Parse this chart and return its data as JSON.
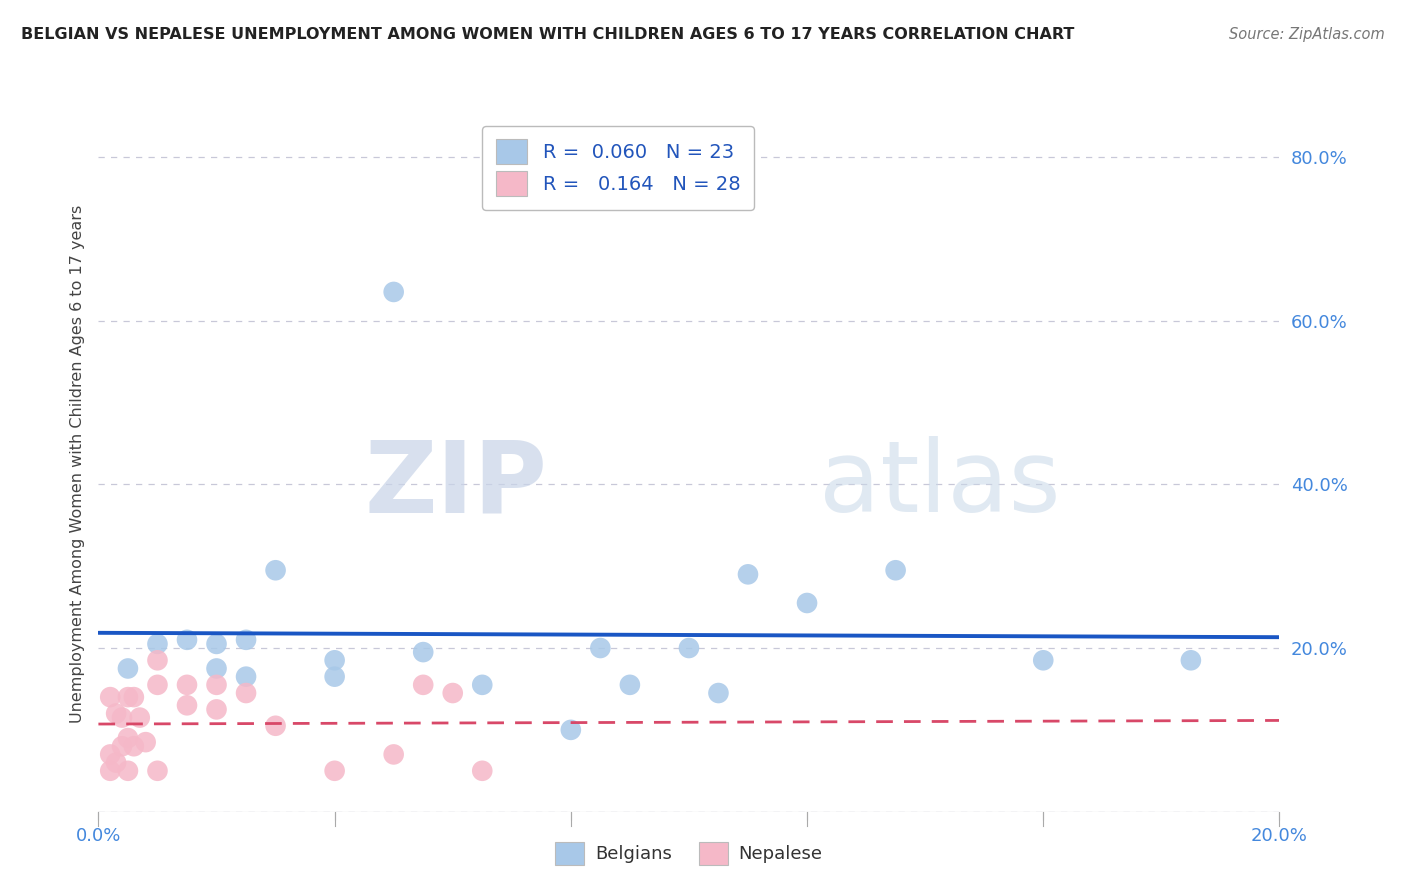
{
  "title": "BELGIAN VS NEPALESE UNEMPLOYMENT AMONG WOMEN WITH CHILDREN AGES 6 TO 17 YEARS CORRELATION CHART",
  "source": "Source: ZipAtlas.com",
  "ylabel": "Unemployment Among Women with Children Ages 6 to 17 years",
  "xlim": [
    0.0,
    0.2
  ],
  "ylim": [
    0.0,
    0.85
  ],
  "x_ticks": [
    0.0,
    0.04,
    0.08,
    0.12,
    0.16,
    0.2
  ],
  "x_tick_labels": [
    "0.0%",
    "",
    "",
    "",
    "",
    "20.0%"
  ],
  "y_ticks": [
    0.0,
    0.2,
    0.4,
    0.6,
    0.8
  ],
  "y_tick_labels": [
    "",
    "20.0%",
    "40.0%",
    "60.0%",
    "80.0%"
  ],
  "belgian_R": "0.060",
  "belgian_N": "23",
  "nepalese_R": "0.164",
  "nepalese_N": "28",
  "belgian_color": "#a8c8e8",
  "nepalese_color": "#f5b8c8",
  "belgian_line_color": "#1a56c4",
  "nepalese_line_color": "#d84868",
  "watermark_zip": "ZIP",
  "watermark_atlas": "atlas",
  "belgian_scatter_x": [
    0.005,
    0.01,
    0.015,
    0.02,
    0.02,
    0.025,
    0.025,
    0.03,
    0.04,
    0.04,
    0.05,
    0.055,
    0.065,
    0.08,
    0.085,
    0.09,
    0.1,
    0.105,
    0.11,
    0.12,
    0.135,
    0.16,
    0.185
  ],
  "belgian_scatter_y": [
    0.175,
    0.205,
    0.21,
    0.175,
    0.205,
    0.165,
    0.21,
    0.295,
    0.185,
    0.165,
    0.635,
    0.195,
    0.155,
    0.1,
    0.2,
    0.155,
    0.2,
    0.145,
    0.29,
    0.255,
    0.295,
    0.185,
    0.185
  ],
  "nepalese_scatter_x": [
    0.002,
    0.002,
    0.002,
    0.003,
    0.003,
    0.004,
    0.004,
    0.005,
    0.005,
    0.005,
    0.006,
    0.006,
    0.007,
    0.008,
    0.01,
    0.01,
    0.01,
    0.015,
    0.015,
    0.02,
    0.02,
    0.025,
    0.03,
    0.04,
    0.05,
    0.055,
    0.06,
    0.065
  ],
  "nepalese_scatter_y": [
    0.05,
    0.07,
    0.14,
    0.06,
    0.12,
    0.08,
    0.115,
    0.05,
    0.09,
    0.14,
    0.08,
    0.14,
    0.115,
    0.085,
    0.155,
    0.185,
    0.05,
    0.13,
    0.155,
    0.125,
    0.155,
    0.145,
    0.105,
    0.05,
    0.07,
    0.155,
    0.145,
    0.05
  ],
  "background_color": "#ffffff",
  "grid_color": "#c8c8d8"
}
